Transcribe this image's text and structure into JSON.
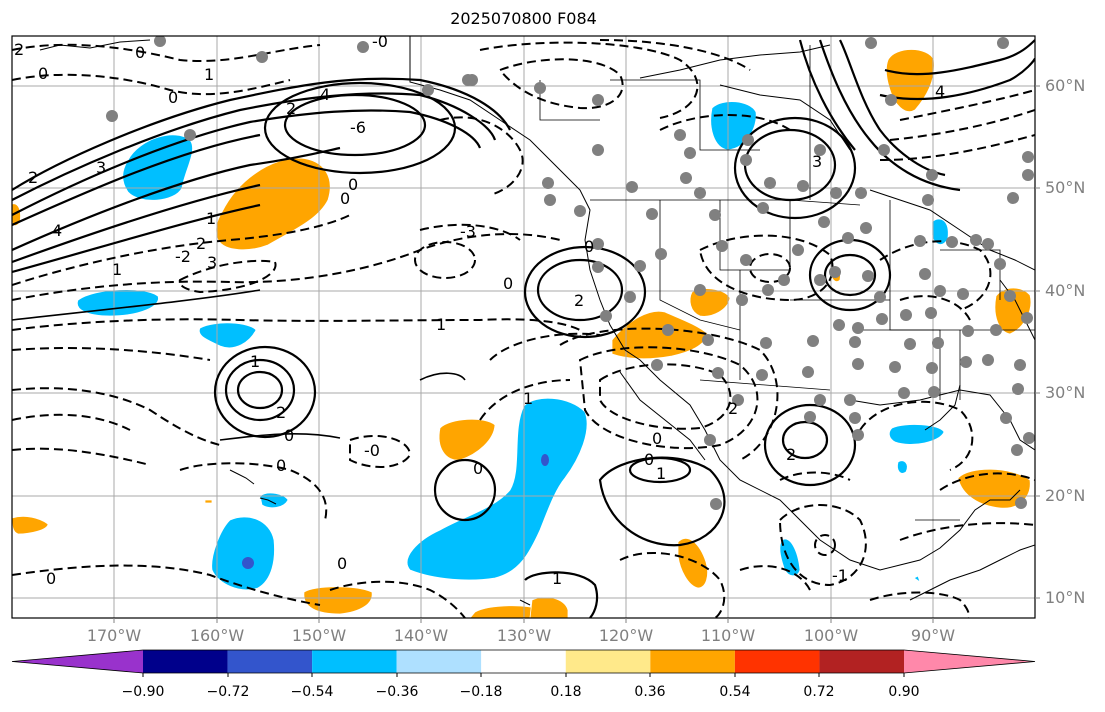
{
  "title": "2025070800 F084",
  "latitude_labels": [
    "10°N",
    "20°N",
    "30°N",
    "40°N",
    "50°N",
    "60°N"
  ],
  "longitude_labels": [
    "170°W",
    "160°W",
    "150°W",
    "140°W",
    "130°W",
    "120°W",
    "110°W",
    "100°W",
    "90°W"
  ],
  "colorbar": {
    "tick_labels": [
      "−0.90",
      "−0.72",
      "−0.54",
      "−0.36",
      "−0.18",
      "0.18",
      "0.36",
      "0.54",
      "0.72",
      "0.90"
    ],
    "colors": [
      "#9932cc",
      "#00008b",
      "#3355cc",
      "#00bfff",
      "#aee0ff",
      "#ffffff",
      "#ffe98a",
      "#ffa500",
      "#ff3300",
      "#b22222",
      "#ff88aa"
    ]
  },
  "contour_labels": [
    "2",
    "0",
    "0",
    "1",
    "0",
    "2",
    "4",
    "-6",
    "-0",
    "2",
    "3",
    "4",
    "0",
    "0",
    "1",
    "2",
    "-2",
    "1",
    "3",
    "-3",
    "0",
    "2",
    "0",
    "1",
    "1",
    "2",
    "0",
    "1",
    "-0",
    "0",
    "0",
    "2",
    "0",
    "1",
    "0",
    "0",
    "0",
    "1",
    "3",
    "4",
    "2",
    "-1"
  ],
  "colors_meaning": {
    "land_fill": "#ffffff",
    "grid": "#a0a0a0",
    "station_dots": "#808080",
    "coast": "#000000"
  }
}
